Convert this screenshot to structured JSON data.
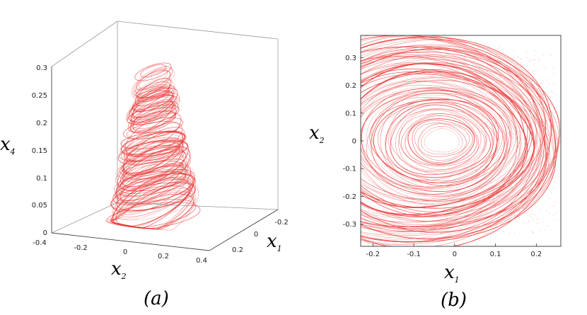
{
  "chart_data": [
    {
      "panel": "a",
      "type": "scatter",
      "projection": "3d",
      "caption": "(a)",
      "xlabel": "x",
      "xlabel_sub": "2",
      "ylabel": "x",
      "ylabel_sub": "1",
      "zlabel": "x",
      "zlabel_sub": "4",
      "xticks": [
        "-0.4",
        "-0.2",
        "0",
        "0.2",
        "0.4"
      ],
      "yticks": [
        "-0.2",
        "0",
        "0.2"
      ],
      "zticks": [
        "0",
        "0.05",
        "0.1",
        "0.15",
        "0.2",
        "0.25",
        "0.3"
      ],
      "xlim": [
        -0.4,
        0.4
      ],
      "ylim": [
        -0.25,
        0.3
      ],
      "zlim": [
        0,
        0.3
      ],
      "grid": false,
      "color": "#e8302f"
    },
    {
      "panel": "b",
      "type": "scatter",
      "caption": "(b)",
      "xlabel": "x",
      "xlabel_sub": "1",
      "ylabel": "x",
      "ylabel_sub": "2",
      "xticks": [
        "-0.2",
        "-0.1",
        "0",
        "0.1",
        "0.2"
      ],
      "yticks": [
        "-0.3",
        "-0.2",
        "-0.1",
        "0",
        "0.1",
        "0.2",
        "0.3"
      ],
      "xlim": [
        -0.23,
        0.26
      ],
      "ylim": [
        -0.38,
        0.38
      ],
      "grid": false,
      "color": "#e8302f"
    }
  ]
}
